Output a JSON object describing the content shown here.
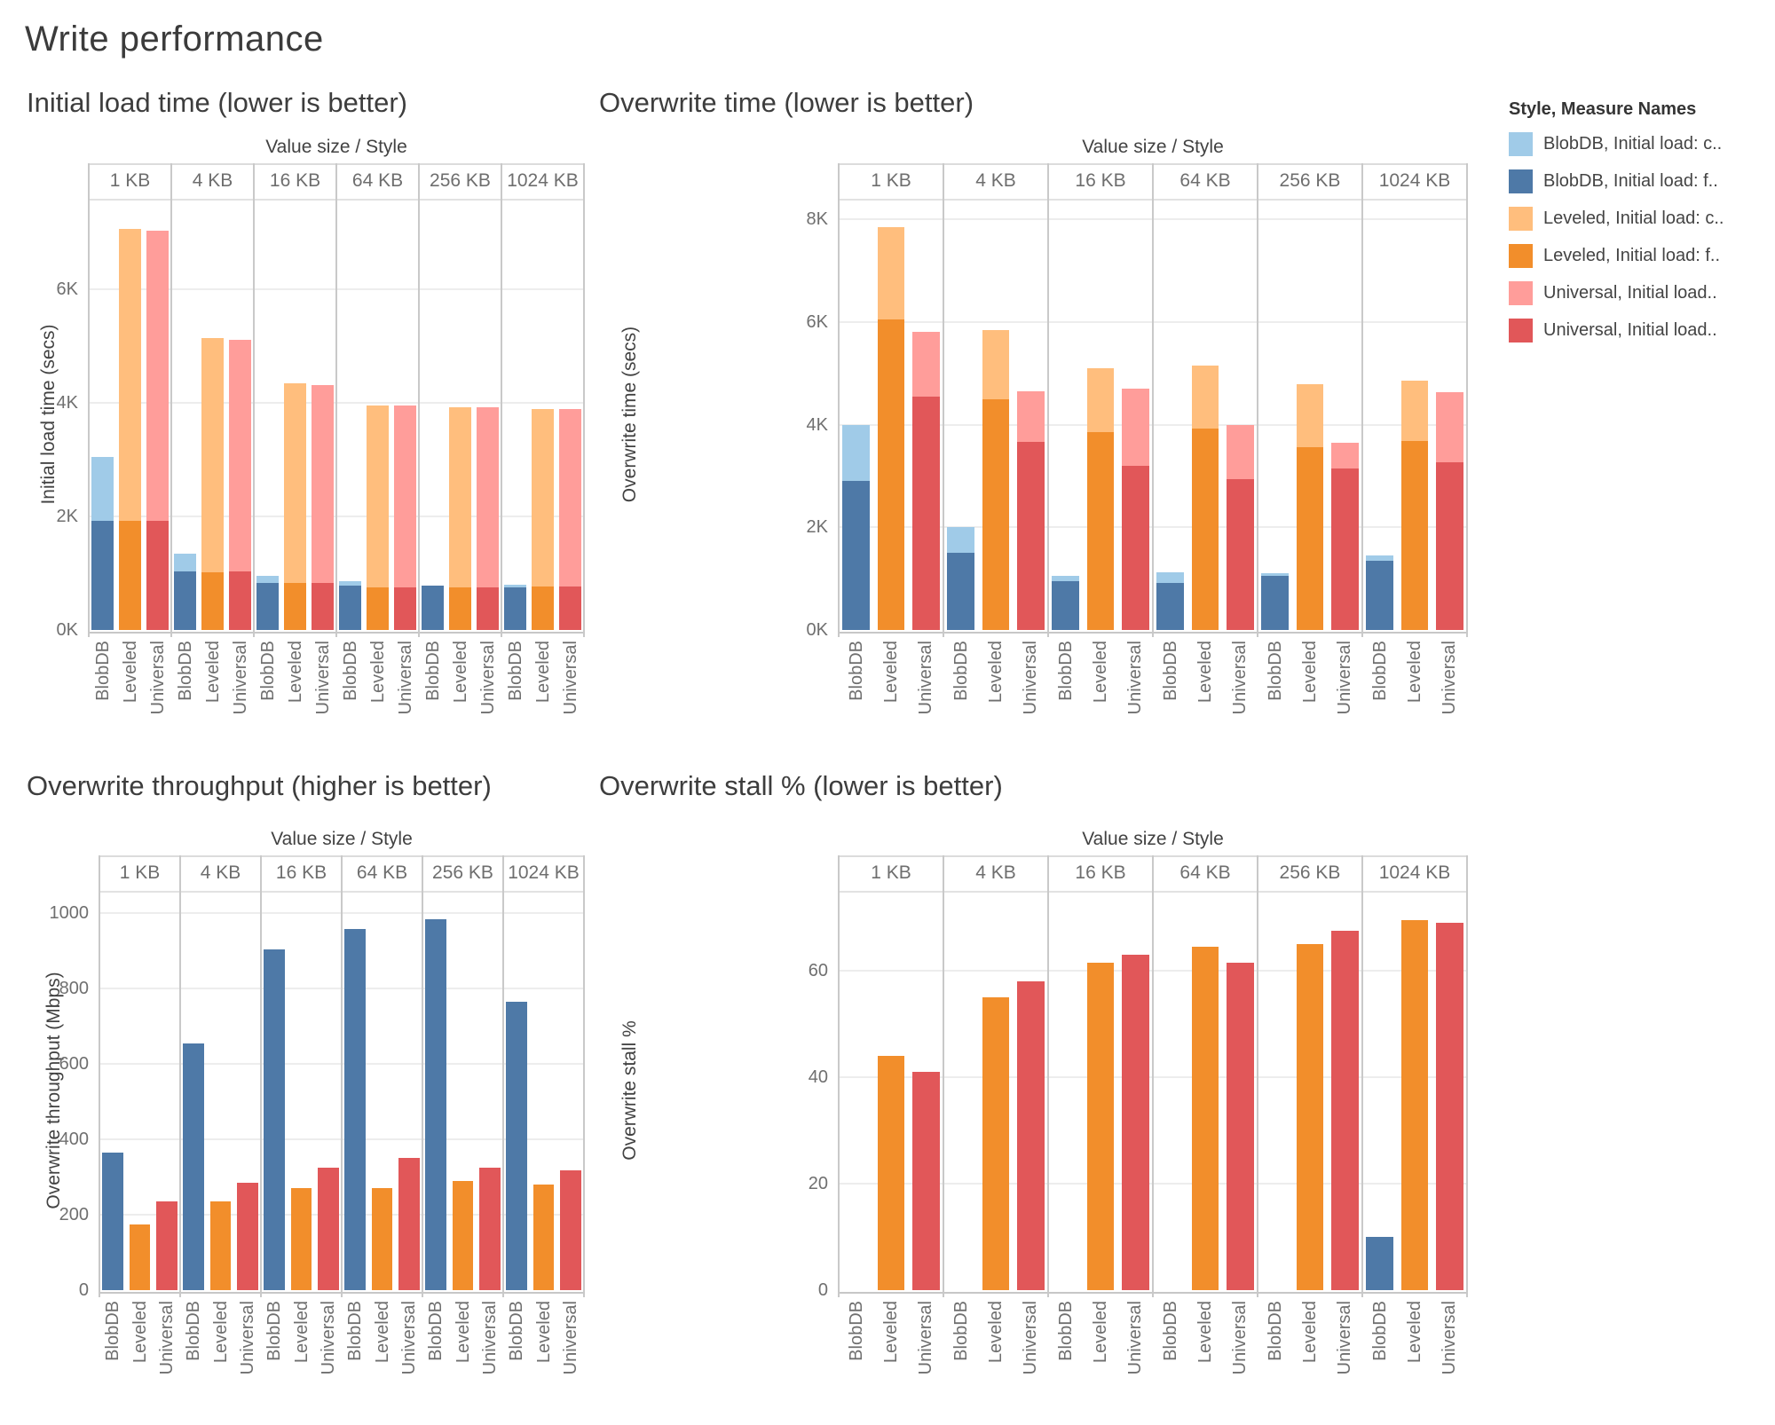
{
  "page_title": "Write performance",
  "colors": {
    "light_blue": "#A0CBE8",
    "blue": "#4E79A7",
    "light_orange": "#FFBE7D",
    "orange": "#F28E2B",
    "pink": "#FF9D9A",
    "red": "#E15759",
    "grid": "#ededed",
    "pane_border": "#c9c9c9",
    "text_primary": "#3d3d3d",
    "text_secondary": "#6f6f6f"
  },
  "legend": {
    "title": "Style, Measure Names",
    "items": [
      {
        "label": "BlobDB, Initial load: c..",
        "color_key": "light_blue"
      },
      {
        "label": "BlobDB, Initial load: f..",
        "color_key": "blue"
      },
      {
        "label": "Leveled, Initial load: c..",
        "color_key": "light_orange"
      },
      {
        "label": "Leveled, Initial load: f..",
        "color_key": "orange"
      },
      {
        "label": "Universal, Initial load..",
        "color_key": "pink"
      },
      {
        "label": "Universal, Initial load..",
        "color_key": "red"
      }
    ]
  },
  "chart_data": [
    {
      "type": "bar",
      "stacked": true,
      "title": "Initial load time (lower is better)",
      "col_field_label": "Value size / Style",
      "ylabel": "Initial load time (secs)",
      "categories": [
        "1 KB",
        "4 KB",
        "16 KB",
        "64 KB",
        "256 KB",
        "1024 KB"
      ],
      "styles": [
        "BlobDB",
        "Leveled",
        "Universal"
      ],
      "ylim": [
        0,
        7600
      ],
      "yticks": [
        0,
        2000,
        4000,
        6000
      ],
      "ytick_labels": [
        "0K",
        "2K",
        "4K",
        "6K"
      ],
      "series": [
        {
          "style": "BlobDB",
          "layer": "back",
          "color_key": "light_blue",
          "values": [
            3050,
            1350,
            950,
            860,
            780,
            800
          ]
        },
        {
          "style": "BlobDB",
          "layer": "front",
          "color_key": "blue",
          "values": [
            1930,
            1030,
            830,
            780,
            780,
            750
          ]
        },
        {
          "style": "Leveled",
          "layer": "back",
          "color_key": "light_orange",
          "values": [
            7070,
            5150,
            4340,
            3950,
            3920,
            3900
          ]
        },
        {
          "style": "Leveled",
          "layer": "front",
          "color_key": "orange",
          "values": [
            1930,
            1020,
            830,
            750,
            750,
            760
          ]
        },
        {
          "style": "Universal",
          "layer": "back",
          "color_key": "pink",
          "values": [
            7030,
            5120,
            4320,
            3950,
            3920,
            3900
          ]
        },
        {
          "style": "Universal",
          "layer": "front",
          "color_key": "red",
          "values": [
            1930,
            1030,
            830,
            750,
            750,
            760
          ]
        }
      ]
    },
    {
      "type": "bar",
      "stacked": true,
      "title": "Overwrite time (lower is better)",
      "col_field_label": "Value size / Style",
      "ylabel": "Overwrite time (secs)",
      "categories": [
        "1 KB",
        "4 KB",
        "16 KB",
        "64 KB",
        "256 KB",
        "1024 KB"
      ],
      "styles": [
        "BlobDB",
        "Leveled",
        "Universal"
      ],
      "ylim": [
        0,
        8400
      ],
      "yticks": [
        0,
        2000,
        4000,
        6000,
        8000
      ],
      "ytick_labels": [
        "0K",
        "2K",
        "4K",
        "6K",
        "8K"
      ],
      "series": [
        {
          "style": "BlobDB",
          "layer": "back",
          "color_key": "light_blue",
          "values": [
            4000,
            2000,
            1050,
            1120,
            1110,
            1450
          ]
        },
        {
          "style": "BlobDB",
          "layer": "front",
          "color_key": "blue",
          "values": [
            2900,
            1500,
            950,
            920,
            1060,
            1350
          ]
        },
        {
          "style": "Leveled",
          "layer": "back",
          "color_key": "light_orange",
          "values": [
            7850,
            5850,
            5100,
            5150,
            4790,
            4860
          ]
        },
        {
          "style": "Leveled",
          "layer": "front",
          "color_key": "orange",
          "values": [
            6050,
            4500,
            3850,
            3930,
            3560,
            3690
          ]
        },
        {
          "style": "Universal",
          "layer": "back",
          "color_key": "pink",
          "values": [
            5800,
            4650,
            4700,
            4000,
            3640,
            4640
          ]
        },
        {
          "style": "Universal",
          "layer": "front",
          "color_key": "red",
          "values": [
            4550,
            3670,
            3200,
            2930,
            3150,
            3270
          ]
        }
      ]
    },
    {
      "type": "bar",
      "stacked": false,
      "title": "Overwrite throughput (higher is better)",
      "col_field_label": "Value size / Style",
      "ylabel": "Overwrite throughput (Mbps)",
      "categories": [
        "1 KB",
        "4 KB",
        "16 KB",
        "64 KB",
        "256 KB",
        "1024 KB"
      ],
      "styles": [
        "BlobDB",
        "Leveled",
        "Universal"
      ],
      "ylim": [
        0,
        1060
      ],
      "yticks": [
        0,
        200,
        400,
        600,
        800,
        1000
      ],
      "ytick_labels": [
        "0",
        "200",
        "400",
        "600",
        "800",
        "1000"
      ],
      "series": [
        {
          "style": "BlobDB",
          "layer": "single",
          "color_key": "blue",
          "values": [
            365,
            655,
            905,
            958,
            985,
            765
          ]
        },
        {
          "style": "Leveled",
          "layer": "single",
          "color_key": "orange",
          "values": [
            175,
            235,
            270,
            270,
            290,
            280
          ]
        },
        {
          "style": "Universal",
          "layer": "single",
          "color_key": "red",
          "values": [
            235,
            285,
            325,
            350,
            325,
            318
          ]
        }
      ]
    },
    {
      "type": "bar",
      "stacked": false,
      "title": "Overwrite stall % (lower is better)",
      "col_field_label": "Value size / Style",
      "ylabel": "Overwrite stall %",
      "categories": [
        "1 KB",
        "4 KB",
        "16 KB",
        "64 KB",
        "256 KB",
        "1024 KB"
      ],
      "styles": [
        "BlobDB",
        "Leveled",
        "Universal"
      ],
      "ylim": [
        0,
        75
      ],
      "yticks": [
        0,
        20,
        40,
        60
      ],
      "ytick_labels": [
        "0",
        "20",
        "40",
        "60"
      ],
      "series": [
        {
          "style": "BlobDB",
          "layer": "single",
          "color_key": "blue",
          "values": [
            0,
            0,
            0,
            0,
            0,
            10
          ]
        },
        {
          "style": "Leveled",
          "layer": "single",
          "color_key": "orange",
          "values": [
            44,
            55,
            61.5,
            64.5,
            65,
            69.5
          ]
        },
        {
          "style": "Universal",
          "layer": "single",
          "color_key": "red",
          "values": [
            41,
            58,
            63,
            61.5,
            67.5,
            69
          ]
        }
      ]
    }
  ]
}
